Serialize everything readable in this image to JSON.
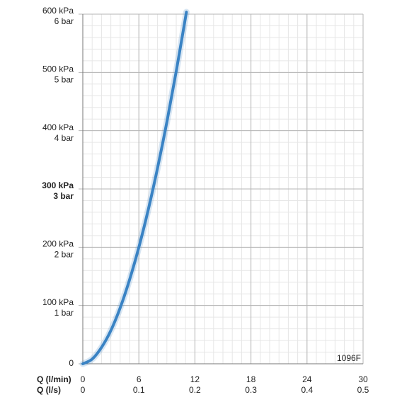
{
  "chart_data": {
    "type": "line",
    "xlabel": "Q (l/min)",
    "x2label": "Q (l/s)",
    "annotation": "1096F",
    "x": [
      0,
      1,
      2,
      3,
      4,
      5,
      6,
      7,
      8,
      9,
      10,
      11,
      11.05
    ],
    "series": [
      {
        "name": "1096F",
        "color": "#3a83c4",
        "values": [
          0,
          8,
          28,
          57,
          96,
          144,
          200,
          264,
          336,
          415,
          502,
          595,
          600
        ]
      }
    ],
    "xlim": [
      0,
      30
    ],
    "xticks": [
      0,
      6,
      12,
      18,
      24,
      30
    ],
    "x2lim": [
      0,
      0.5
    ],
    "x2ticks": [
      0,
      0.1,
      0.2,
      0.3,
      0.4,
      0.5
    ],
    "ylim": [
      0,
      600
    ],
    "yticks": [
      0,
      {
        "value": 100,
        "label": "100 kPa"
      },
      {
        "value": 200,
        "label": "200 kPa"
      },
      {
        "value": 300,
        "label": "300 kPa"
      },
      {
        "value": 400,
        "label": "400 kPa"
      },
      {
        "value": 500,
        "label": "500 kPa"
      },
      {
        "value": 600,
        "label": "600 kPa"
      }
    ],
    "ytick_sublabels": [
      null,
      "1 bar",
      "2 bar",
      "3 bar",
      "4 bar",
      "5 bar",
      "6 bar"
    ],
    "bold_ytick": 300,
    "grid": true
  }
}
